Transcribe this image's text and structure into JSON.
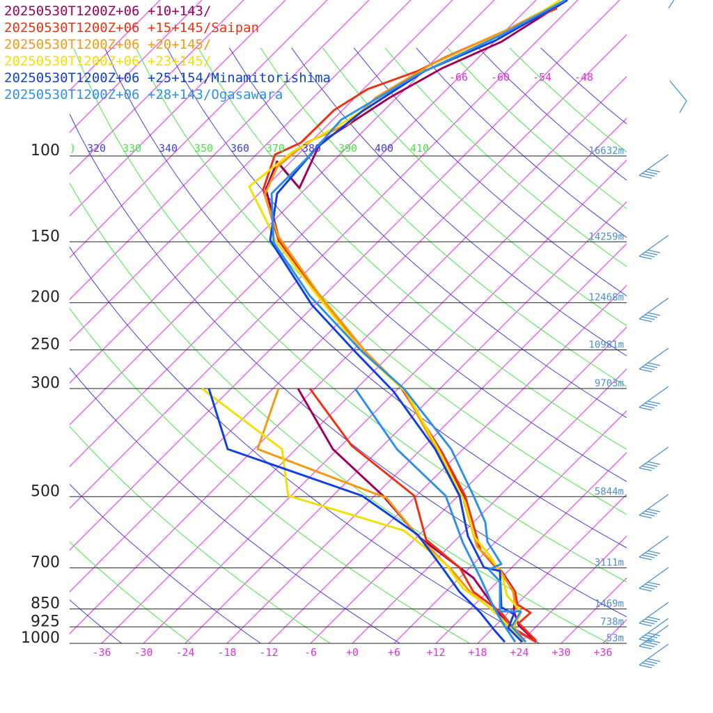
{
  "chart_data": {
    "type": "line",
    "legend": {
      "placement": "top-left",
      "entries": [
        {
          "text": "20250530T1200Z+06 +10+143/",
          "color": "#a0005a"
        },
        {
          "text": "20250530T1200Z+06 +15+145/Saipan",
          "color": "#f03010"
        },
        {
          "text": "20250530T1200Z+06 +20+145/",
          "color": "#f59a10"
        },
        {
          "text": "20250530T1200Z+06 +23+145/",
          "color": "#f2e000"
        },
        {
          "text": "20250530T1200Z+06 +25+154/Minamitorishima",
          "color": "#1040e0"
        },
        {
          "text": "20250530T1200Z+06 +28+143/Ogasawara",
          "color": "#3090e8"
        }
      ]
    },
    "pressure_levels": [
      {
        "p": 100,
        "label": "100",
        "height": "16632m"
      },
      {
        "p": 150,
        "label": "150",
        "height": "14259m"
      },
      {
        "p": 200,
        "label": "200",
        "height": "12468m"
      },
      {
        "p": 250,
        "label": "250",
        "height": "10981m"
      },
      {
        "p": 300,
        "label": "300",
        "height": "9703m"
      },
      {
        "p": 500,
        "label": "500",
        "height": "5844m"
      },
      {
        "p": 700,
        "label": "700",
        "height": "3111m"
      },
      {
        "p": 850,
        "label": "850",
        "height": "1469m"
      },
      {
        "p": 925,
        "label": "925",
        "height": "738m"
      },
      {
        "p": 1000,
        "label": "1000",
        "height": "53m"
      }
    ],
    "x_ticks": [
      "-36",
      "-30",
      "-24",
      "-18",
      "-12",
      "-6",
      "+0",
      "+6",
      "+12",
      "+18",
      "+24",
      "+30",
      "+36"
    ],
    "top_isotherm_labels": [
      "-66",
      "-60",
      "-54",
      "-48"
    ],
    "theta_labels": [
      ")",
      "320",
      "330",
      "340",
      "350",
      "360",
      "370",
      "380",
      "390",
      "400",
      "410"
    ],
    "colors": {
      "isotherm": "#e030e0",
      "theta_green": "#44e844",
      "theta_blue": "#4040e0",
      "height_text": "#4a90d0",
      "axis": "#222222"
    },
    "series": [
      {
        "name": "20250530T1200Z+06 +10+143/",
        "color": "#a0005a",
        "temperature": [
          [
            815,
            0
          ],
          [
            720,
            60
          ],
          [
            635,
            98
          ],
          [
            560,
            140
          ],
          [
            460,
            205
          ],
          [
            430,
            270
          ],
          [
            398,
            232
          ],
          [
            382,
            272
          ],
          [
            400,
            340
          ],
          [
            455,
            420
          ],
          [
            515,
            500
          ],
          [
            575,
            555
          ],
          [
            635,
            650
          ],
          [
            665,
            710
          ],
          [
            690,
            790
          ],
          [
            720,
            820
          ],
          [
            740,
            850
          ],
          [
            738,
            878
          ],
          [
            745,
            898
          ],
          [
            770,
            922
          ]
        ],
        "dewpoint": [
          [
            428,
            558
          ],
          [
            478,
            645
          ],
          [
            550,
            712
          ],
          [
            570,
            735
          ],
          [
            600,
            770
          ],
          [
            640,
            800
          ],
          [
            680,
            830
          ],
          [
            710,
            872
          ],
          [
            730,
            898
          ],
          [
            770,
            922
          ]
        ]
      },
      {
        "name": "20250530T1200Z+06 +15+145/Saipan",
        "color": "#f03010",
        "temperature": [
          [
            800,
            12
          ],
          [
            740,
            38
          ],
          [
            640,
            82
          ],
          [
            600,
            102
          ],
          [
            528,
            128
          ],
          [
            480,
            158
          ],
          [
            432,
            205
          ],
          [
            395,
            222
          ],
          [
            378,
            272
          ],
          [
            400,
            345
          ],
          [
            455,
            420
          ],
          [
            520,
            505
          ],
          [
            575,
            555
          ],
          [
            635,
            650
          ],
          [
            668,
            712
          ],
          [
            690,
            790
          ],
          [
            715,
            818
          ],
          [
            740,
            850
          ],
          [
            743,
            868
          ],
          [
            762,
            880
          ],
          [
            745,
            895
          ],
          [
            770,
            920
          ]
        ],
        "dewpoint": [
          [
            445,
            558
          ],
          [
            505,
            640
          ],
          [
            595,
            712
          ],
          [
            612,
            775
          ],
          [
            660,
            815
          ],
          [
            680,
            850
          ],
          [
            720,
            880
          ],
          [
            740,
            905
          ],
          [
            770,
            922
          ]
        ]
      },
      {
        "name": "20250530T1200Z+06 +20+145/",
        "color": "#f59a10",
        "temperature": [
          [
            800,
            5
          ],
          [
            730,
            42
          ],
          [
            620,
            92
          ],
          [
            540,
            140
          ],
          [
            500,
            178
          ],
          [
            440,
            205
          ],
          [
            398,
            240
          ],
          [
            380,
            280
          ],
          [
            400,
            340
          ],
          [
            460,
            425
          ],
          [
            525,
            505
          ],
          [
            580,
            560
          ],
          [
            632,
            655
          ],
          [
            665,
            715
          ],
          [
            685,
            785
          ],
          [
            718,
            818
          ],
          [
            737,
            850
          ],
          [
            740,
            870
          ],
          [
            748,
            880
          ],
          [
            738,
            900
          ],
          [
            755,
            922
          ]
        ],
        "dewpoint": [
          [
            400,
            558
          ],
          [
            370,
            645
          ],
          [
            555,
            715
          ],
          [
            600,
            770
          ],
          [
            650,
            820
          ],
          [
            675,
            850
          ],
          [
            712,
            880
          ],
          [
            735,
            905
          ],
          [
            755,
            922
          ]
        ]
      },
      {
        "name": "20250530T1200Z+06 +23+145/",
        "color": "#f2e000",
        "temperature": [
          [
            805,
            0
          ],
          [
            740,
            40
          ],
          [
            610,
            102
          ],
          [
            500,
            172
          ],
          [
            420,
            218
          ],
          [
            358,
            268
          ],
          [
            385,
            322
          ],
          [
            395,
            345
          ],
          [
            460,
            430
          ],
          [
            520,
            505
          ],
          [
            585,
            565
          ],
          [
            632,
            650
          ],
          [
            668,
            722
          ],
          [
            682,
            772
          ],
          [
            705,
            800
          ],
          [
            722,
            830
          ],
          [
            728,
            855
          ],
          [
            748,
            878
          ],
          [
            735,
            905
          ],
          [
            752,
            922
          ]
        ],
        "dewpoint": [
          [
            290,
            558
          ],
          [
            405,
            645
          ],
          [
            414,
            712
          ],
          [
            580,
            762
          ],
          [
            640,
            810
          ],
          [
            665,
            845
          ],
          [
            700,
            870
          ],
          [
            722,
            890
          ],
          [
            752,
            922
          ]
        ]
      },
      {
        "name": "20250530T1200Z+06 +25+154/Minamitorishima",
        "color": "#1040e0",
        "temperature": [
          [
            815,
            0
          ],
          [
            712,
            58
          ],
          [
            610,
            102
          ],
          [
            520,
            160
          ],
          [
            455,
            212
          ],
          [
            398,
            278
          ],
          [
            388,
            345
          ],
          [
            448,
            438
          ],
          [
            510,
            505
          ],
          [
            565,
            562
          ],
          [
            625,
            645
          ],
          [
            660,
            712
          ],
          [
            672,
            770
          ],
          [
            695,
            815
          ],
          [
            718,
            820
          ],
          [
            720,
            872
          ],
          [
            738,
            882
          ],
          [
            730,
            902
          ],
          [
            750,
            922
          ]
        ],
        "dewpoint": [
          [
            300,
            558
          ],
          [
            327,
            645
          ],
          [
            520,
            712
          ],
          [
            600,
            768
          ],
          [
            635,
            815
          ],
          [
            660,
            850
          ],
          [
            690,
            880
          ],
          [
            710,
            905
          ],
          [
            725,
            922
          ]
        ]
      },
      {
        "name": "20250530T1200Z+06 +28+143/Ogasawara",
        "color": "#3090e8",
        "temperature": [
          [
            812,
            0
          ],
          [
            720,
            50
          ],
          [
            598,
            108
          ],
          [
            490,
            172
          ],
          [
            440,
            228
          ],
          [
            390,
            278
          ],
          [
            393,
            348
          ],
          [
            445,
            425
          ],
          [
            520,
            505
          ],
          [
            580,
            558
          ],
          [
            648,
            645
          ],
          [
            680,
            712
          ],
          [
            697,
            750
          ],
          [
            700,
            778
          ],
          [
            720,
            810
          ],
          [
            702,
            818
          ],
          [
            718,
            835
          ],
          [
            718,
            878
          ],
          [
            748,
            878
          ],
          [
            735,
            900
          ],
          [
            755,
            922
          ]
        ],
        "dewpoint": [
          [
            510,
            558
          ],
          [
            570,
            645
          ],
          [
            640,
            712
          ],
          [
            665,
            780
          ],
          [
            690,
            830
          ],
          [
            708,
            870
          ],
          [
            722,
            895
          ],
          [
            740,
            922
          ]
        ]
      }
    ],
    "wind_barbs_color": "#4a90d0"
  }
}
